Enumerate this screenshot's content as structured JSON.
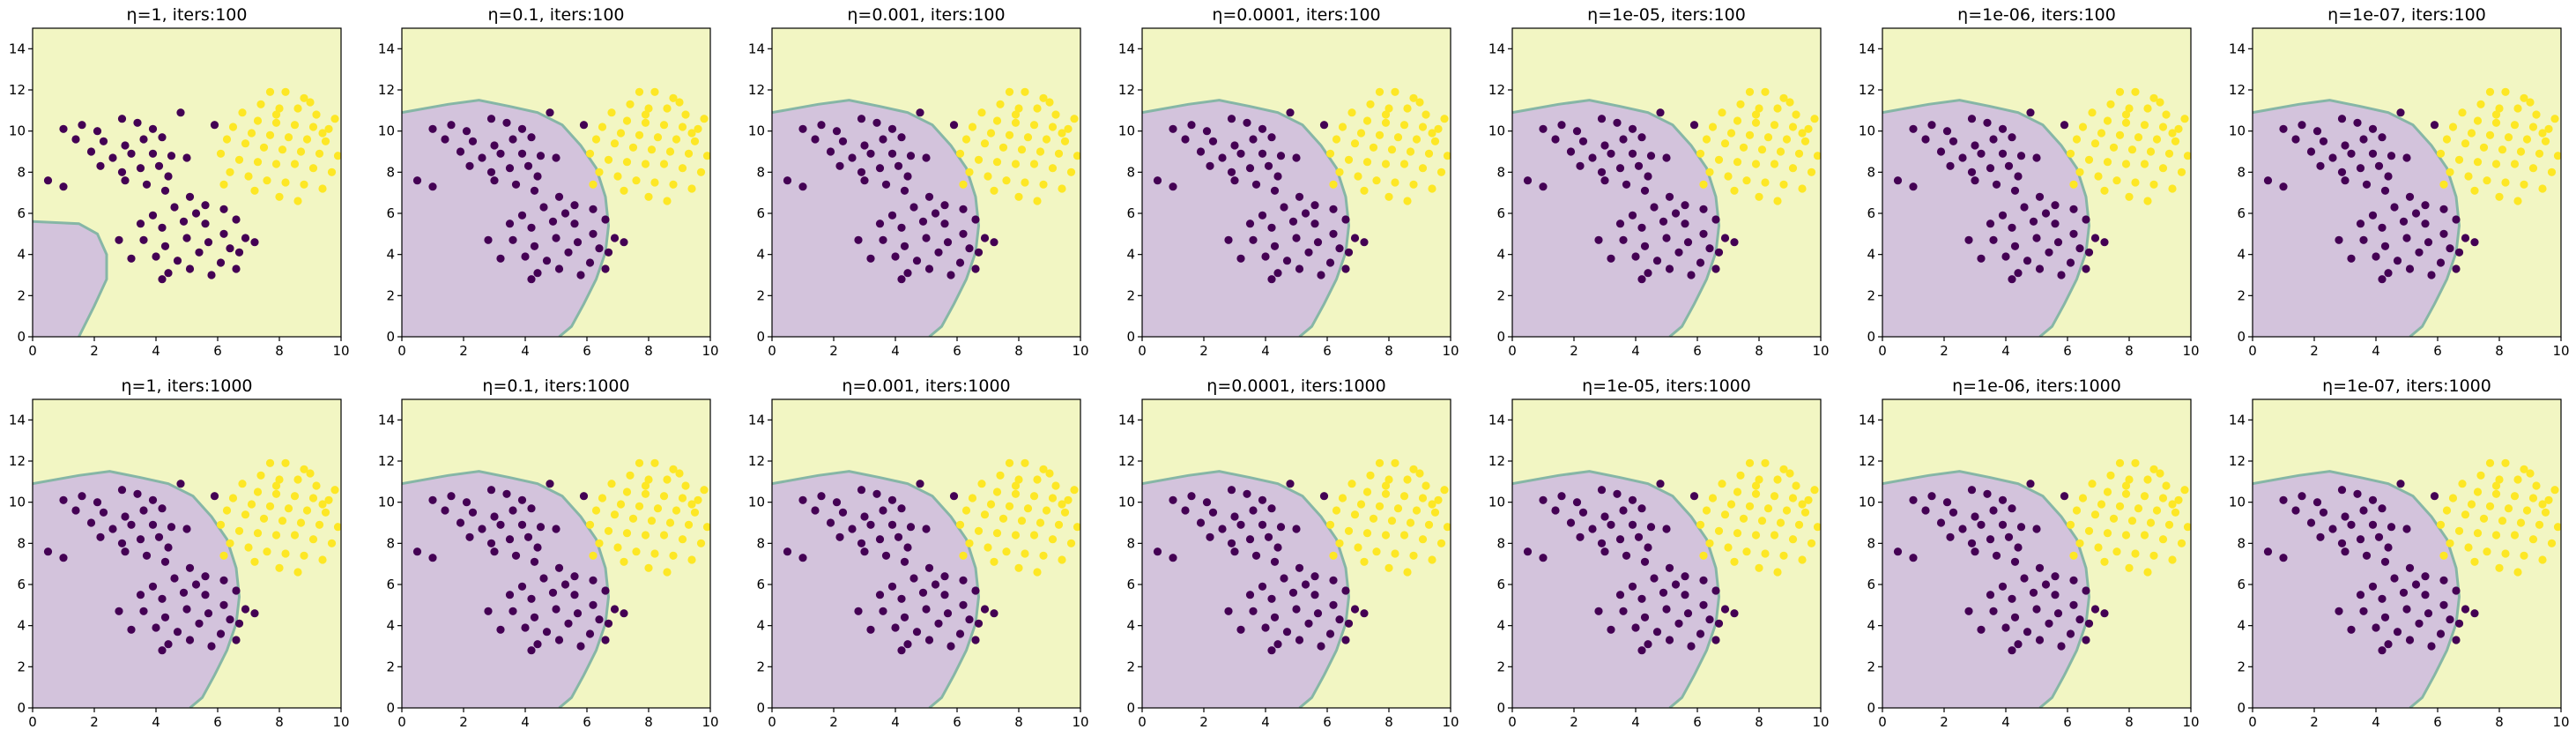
{
  "colors": {
    "class0_region": "#d3c3dc",
    "class1_region": "#f2f6c3",
    "boundary": "#86b6a6",
    "class0_point": "#440154",
    "class1_point": "#fde725"
  },
  "chart_data": {
    "type": "scatter",
    "grid": false,
    "layout": "2 rows x 7 columns",
    "xlim": [
      0,
      10
    ],
    "ylim": [
      0,
      15
    ],
    "xticks": [
      0,
      2,
      4,
      6,
      8,
      10
    ],
    "yticks": [
      0,
      2,
      4,
      6,
      8,
      10,
      12,
      14
    ],
    "points_class0": [
      [
        1.0,
        10.1
      ],
      [
        1.6,
        10.3
      ],
      [
        2.1,
        10.0
      ],
      [
        2.9,
        10.6
      ],
      [
        3.4,
        10.4
      ],
      [
        3.9,
        10.1
      ],
      [
        4.2,
        9.7
      ],
      [
        1.4,
        9.6
      ],
      [
        2.3,
        9.5
      ],
      [
        3.0,
        9.3
      ],
      [
        3.6,
        9.6
      ],
      [
        1.9,
        9.0
      ],
      [
        2.6,
        8.7
      ],
      [
        3.2,
        8.9
      ],
      [
        3.9,
        8.9
      ],
      [
        4.5,
        8.8
      ],
      [
        5.0,
        8.7
      ],
      [
        2.2,
        8.3
      ],
      [
        2.9,
        8.0
      ],
      [
        3.5,
        8.2
      ],
      [
        4.1,
        8.3
      ],
      [
        4.4,
        7.8
      ],
      [
        3.0,
        7.6
      ],
      [
        3.7,
        7.4
      ],
      [
        4.3,
        7.1
      ],
      [
        0.5,
        7.6
      ],
      [
        1.0,
        7.3
      ],
      [
        4.8,
        10.9
      ],
      [
        5.9,
        10.3
      ],
      [
        3.9,
        5.9
      ],
      [
        4.6,
        6.3
      ],
      [
        5.1,
        6.8
      ],
      [
        5.6,
        6.4
      ],
      [
        6.2,
        6.2
      ],
      [
        6.6,
        5.7
      ],
      [
        3.5,
        5.5
      ],
      [
        4.2,
        5.3
      ],
      [
        4.9,
        5.6
      ],
      [
        5.6,
        5.5
      ],
      [
        6.2,
        5.0
      ],
      [
        6.9,
        4.8
      ],
      [
        7.2,
        4.6
      ],
      [
        3.6,
        4.7
      ],
      [
        4.3,
        4.4
      ],
      [
        5.0,
        4.8
      ],
      [
        5.7,
        4.6
      ],
      [
        6.4,
        4.3
      ],
      [
        4.0,
        3.9
      ],
      [
        4.7,
        3.7
      ],
      [
        5.4,
        4.1
      ],
      [
        6.1,
        3.6
      ],
      [
        6.7,
        4.1
      ],
      [
        4.4,
        3.1
      ],
      [
        5.1,
        3.3
      ],
      [
        5.8,
        3.0
      ],
      [
        4.2,
        2.8
      ],
      [
        2.8,
        4.7
      ],
      [
        3.2,
        3.8
      ],
      [
        6.6,
        3.3
      ],
      [
        5.3,
        6.0
      ]
    ],
    "points_class1": [
      [
        7.7,
        11.9
      ],
      [
        8.2,
        11.9
      ],
      [
        8.8,
        11.6
      ],
      [
        7.4,
        11.3
      ],
      [
        8.0,
        11.1
      ],
      [
        8.6,
        11.1
      ],
      [
        9.2,
        10.8
      ],
      [
        9.8,
        10.6
      ],
      [
        6.8,
        10.9
      ],
      [
        7.3,
        10.5
      ],
      [
        7.9,
        10.4
      ],
      [
        8.5,
        10.3
      ],
      [
        9.1,
        10.2
      ],
      [
        9.6,
        10.1
      ],
      [
        6.5,
        10.2
      ],
      [
        7.1,
        9.9
      ],
      [
        7.7,
        9.8
      ],
      [
        8.3,
        9.7
      ],
      [
        8.9,
        9.6
      ],
      [
        9.5,
        9.5
      ],
      [
        10.2,
        9.4
      ],
      [
        6.3,
        9.6
      ],
      [
        6.9,
        9.4
      ],
      [
        7.5,
        9.2
      ],
      [
        8.1,
        9.1
      ],
      [
        8.7,
        9.0
      ],
      [
        9.3,
        8.9
      ],
      [
        9.9,
        8.8
      ],
      [
        10.4,
        8.6
      ],
      [
        6.1,
        8.9
      ],
      [
        6.7,
        8.6
      ],
      [
        7.3,
        8.5
      ],
      [
        7.9,
        8.4
      ],
      [
        8.5,
        8.4
      ],
      [
        9.1,
        8.2
      ],
      [
        9.7,
        8.0
      ],
      [
        10.3,
        8.0
      ],
      [
        6.4,
        8.0
      ],
      [
        7.0,
        7.8
      ],
      [
        7.6,
        7.6
      ],
      [
        8.2,
        7.5
      ],
      [
        8.8,
        7.4
      ],
      [
        9.4,
        7.2
      ],
      [
        7.2,
        7.1
      ],
      [
        8.0,
        6.8
      ],
      [
        8.6,
        6.6
      ],
      [
        6.2,
        7.4
      ],
      [
        7.9,
        10.8
      ],
      [
        9.0,
        11.4
      ],
      [
        9.4,
        9.9
      ]
    ],
    "boundary_small": [
      [
        0,
        5.6
      ],
      [
        1.5,
        5.5
      ],
      [
        2.1,
        5.0
      ],
      [
        2.4,
        4.0
      ],
      [
        2.4,
        2.8
      ],
      [
        2.0,
        1.5
      ],
      [
        1.5,
        0
      ]
    ],
    "boundary_large": [
      [
        0,
        10.9
      ],
      [
        1.5,
        11.3
      ],
      [
        2.5,
        11.5
      ],
      [
        3.5,
        11.2
      ],
      [
        4.4,
        10.9
      ],
      [
        5.2,
        10.3
      ],
      [
        5.8,
        9.3
      ],
      [
        6.3,
        8.2
      ],
      [
        6.6,
        6.8
      ],
      [
        6.7,
        5.4
      ],
      [
        6.6,
        4.1
      ],
      [
        6.3,
        2.8
      ],
      [
        5.9,
        1.6
      ],
      [
        5.5,
        0.5
      ],
      [
        5.1,
        0
      ]
    ],
    "panels": [
      {
        "title": "η=1, iters:100",
        "boundary": "small"
      },
      {
        "title": "η=0.1, iters:100",
        "boundary": "large"
      },
      {
        "title": "η=0.001, iters:100",
        "boundary": "large"
      },
      {
        "title": "η=0.0001, iters:100",
        "boundary": "large"
      },
      {
        "title": "η=1e-05, iters:100",
        "boundary": "large"
      },
      {
        "title": "η=1e-06, iters:100",
        "boundary": "large"
      },
      {
        "title": "η=1e-07, iters:100",
        "boundary": "large"
      },
      {
        "title": "η=1, iters:1000",
        "boundary": "large"
      },
      {
        "title": "η=0.1, iters:1000",
        "boundary": "large"
      },
      {
        "title": "η=0.001, iters:1000",
        "boundary": "large"
      },
      {
        "title": "η=0.0001, iters:1000",
        "boundary": "large"
      },
      {
        "title": "η=1e-05, iters:1000",
        "boundary": "large"
      },
      {
        "title": "η=1e-06, iters:1000",
        "boundary": "large"
      },
      {
        "title": "η=1e-07, iters:1000",
        "boundary": "large"
      }
    ]
  }
}
